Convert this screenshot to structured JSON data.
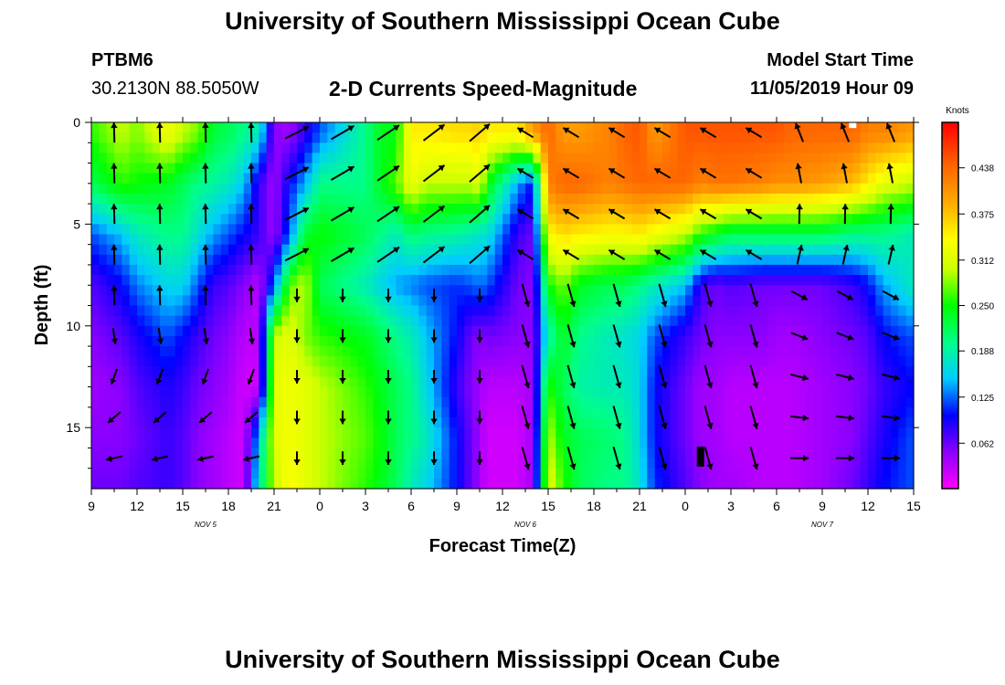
{
  "header": {
    "title_top": "University of Southern Mississippi Ocean Cube",
    "title_bottom": "University of Southern Mississippi Ocean Cube",
    "station": "PTBM6",
    "coordinates": "30.2130N 88.5050W",
    "chart_title": "2-D Currents Speed-Magnitude",
    "model_start_label": "Model Start Time",
    "model_start_value": "11/05/2019 Hour 09"
  },
  "chart_data": {
    "type": "heatmap",
    "title": "2-D Currents Speed-Magnitude",
    "xlabel": "Forecast Time(Z)",
    "ylabel": "Depth (ft)",
    "x_tick_labels": [
      "9",
      "12",
      "15",
      "18",
      "21",
      "0",
      "3",
      "6",
      "9",
      "12",
      "15",
      "18",
      "21",
      "0",
      "3",
      "6",
      "9",
      "12",
      "15"
    ],
    "date_labels": [
      "NOV 5",
      "NOV 6",
      "NOV 7"
    ],
    "x_range_hours": [
      0,
      54
    ],
    "y_ticks": [
      0,
      5,
      10,
      15
    ],
    "ylim": [
      0,
      18
    ],
    "y_inverted": true,
    "colorbar": {
      "title": "Knots",
      "ticks": [
        "0.062",
        "0.125",
        "0.188",
        "0.250",
        "0.312",
        "0.375",
        "0.438"
      ],
      "range": [
        0,
        0.5
      ],
      "colors": [
        "#ff00ff",
        "#8a00ff",
        "#0000ff",
        "#00ccff",
        "#00ff88",
        "#00ff00",
        "#ccff00",
        "#ffff00",
        "#ffaa00",
        "#ff6600",
        "#ff0000"
      ]
    },
    "vector_field": true,
    "depth_rows_ft": [
      0.5,
      3,
      5.5,
      8,
      10.5,
      13,
      15.5,
      17.8
    ],
    "speed_hour_stops": [
      0,
      2,
      3,
      5,
      6,
      7,
      8,
      9,
      10,
      11,
      12,
      13,
      14,
      15,
      18,
      19,
      20,
      21,
      22,
      24,
      25,
      25.5,
      26,
      28,
      29,
      30,
      31,
      32,
      34,
      35,
      36,
      37,
      39,
      40,
      41,
      42,
      44,
      45,
      46,
      48,
      50,
      51,
      52,
      54
    ],
    "speed_grid": [
      [
        0.26,
        0.3,
        0.28,
        0.33,
        0.3,
        0.28,
        0.23,
        0.22,
        0.2,
        0.18,
        0.05,
        0.04,
        0.08,
        0.12,
        0.2,
        0.24,
        0.24,
        0.35,
        0.35,
        0.36,
        0.36,
        0.37,
        0.35,
        0.35,
        0.4,
        0.44,
        0.4,
        0.4,
        0.42,
        0.44,
        0.45,
        0.4,
        0.45,
        0.45,
        0.45,
        0.45,
        0.45,
        0.45,
        0.44,
        0.44,
        0.44,
        0.42,
        0.42,
        0.4
      ],
      [
        0.22,
        0.26,
        0.25,
        0.24,
        0.22,
        0.2,
        0.19,
        0.18,
        0.15,
        0.08,
        0.04,
        0.1,
        0.14,
        0.2,
        0.2,
        0.24,
        0.27,
        0.33,
        0.3,
        0.3,
        0.3,
        0.32,
        0.25,
        0.14,
        0.1,
        0.42,
        0.44,
        0.44,
        0.42,
        0.43,
        0.44,
        0.44,
        0.44,
        0.42,
        0.43,
        0.43,
        0.42,
        0.41,
        0.41,
        0.4,
        0.38,
        0.35,
        0.32,
        0.3
      ],
      [
        0.12,
        0.15,
        0.18,
        0.2,
        0.2,
        0.17,
        0.14,
        0.12,
        0.1,
        0.08,
        0.04,
        0.12,
        0.23,
        0.25,
        0.22,
        0.2,
        0.18,
        0.21,
        0.2,
        0.19,
        0.18,
        0.17,
        0.17,
        0.08,
        0.06,
        0.34,
        0.36,
        0.35,
        0.34,
        0.34,
        0.35,
        0.33,
        0.3,
        0.26,
        0.24,
        0.22,
        0.22,
        0.22,
        0.22,
        0.22,
        0.2,
        0.2,
        0.2,
        0.18
      ],
      [
        0.07,
        0.1,
        0.13,
        0.16,
        0.16,
        0.12,
        0.08,
        0.07,
        0.05,
        0.03,
        0.12,
        0.27,
        0.3,
        0.22,
        0.18,
        0.16,
        0.14,
        0.13,
        0.12,
        0.11,
        0.12,
        0.13,
        0.12,
        0.06,
        0.05,
        0.25,
        0.28,
        0.24,
        0.22,
        0.22,
        0.2,
        0.18,
        0.15,
        0.08,
        0.06,
        0.07,
        0.06,
        0.06,
        0.06,
        0.06,
        0.08,
        0.1,
        0.14,
        0.18
      ],
      [
        0.05,
        0.07,
        0.09,
        0.12,
        0.1,
        0.08,
        0.06,
        0.05,
        0.03,
        0.03,
        0.3,
        0.32,
        0.28,
        0.26,
        0.24,
        0.22,
        0.2,
        0.18,
        0.15,
        0.1,
        0.06,
        0.05,
        0.06,
        0.05,
        0.05,
        0.18,
        0.24,
        0.2,
        0.18,
        0.17,
        0.16,
        0.12,
        0.08,
        0.06,
        0.05,
        0.05,
        0.05,
        0.04,
        0.04,
        0.05,
        0.06,
        0.07,
        0.1,
        0.12
      ],
      [
        0.04,
        0.05,
        0.07,
        0.09,
        0.08,
        0.06,
        0.05,
        0.04,
        0.02,
        0.02,
        0.32,
        0.33,
        0.32,
        0.3,
        0.26,
        0.24,
        0.22,
        0.2,
        0.16,
        0.08,
        0.05,
        0.04,
        0.03,
        0.03,
        0.04,
        0.26,
        0.22,
        0.19,
        0.18,
        0.18,
        0.16,
        0.1,
        0.06,
        0.04,
        0.04,
        0.03,
        0.03,
        0.03,
        0.03,
        0.04,
        0.05,
        0.06,
        0.08,
        0.1
      ],
      [
        0.05,
        0.05,
        0.06,
        0.08,
        0.07,
        0.05,
        0.04,
        0.03,
        0.02,
        0.15,
        0.32,
        0.33,
        0.32,
        0.3,
        0.27,
        0.25,
        0.22,
        0.2,
        0.18,
        0.1,
        0.06,
        0.04,
        0.02,
        0.02,
        0.04,
        0.3,
        0.24,
        0.22,
        0.21,
        0.2,
        0.16,
        0.1,
        0.06,
        0.04,
        0.04,
        0.03,
        0.03,
        0.03,
        0.03,
        0.04,
        0.05,
        0.07,
        0.09,
        0.12
      ],
      [
        0.06,
        0.06,
        0.07,
        0.08,
        0.07,
        0.05,
        0.04,
        0.03,
        0.02,
        0.18,
        0.3,
        0.34,
        0.32,
        0.3,
        0.26,
        0.24,
        0.22,
        0.18,
        0.16,
        0.1,
        0.06,
        0.04,
        0.02,
        0.02,
        0.04,
        0.32,
        0.26,
        0.22,
        0.2,
        0.2,
        0.17,
        0.11,
        0.07,
        0.05,
        0.04,
        0.04,
        0.03,
        0.03,
        0.03,
        0.04,
        0.06,
        0.08,
        0.1,
        0.12
      ]
    ],
    "markers": [
      {
        "hour": 40.0,
        "depth": 16.2
      },
      {
        "hour": 50.0,
        "depth": 0.1
      }
    ]
  }
}
